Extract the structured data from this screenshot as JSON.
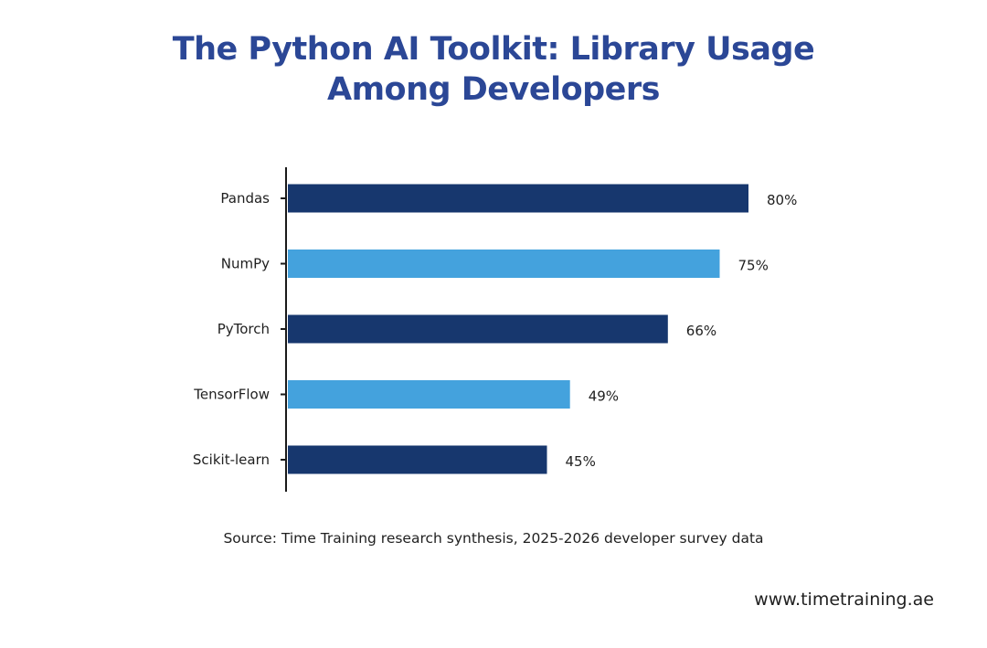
{
  "colors": {
    "title": "#2b4796",
    "dark_bar": "#17376e",
    "light_bar": "#44a2dd",
    "axis": "#1a1a1a"
  },
  "chart_data": {
    "type": "bar",
    "orientation": "horizontal",
    "title_lines": [
      "The Python AI Toolkit: Library Usage",
      "Among Developers"
    ],
    "categories": [
      "Pandas",
      "NumPy",
      "PyTorch",
      "TensorFlow",
      "Scikit-learn"
    ],
    "values": [
      80,
      75,
      66,
      49,
      45
    ],
    "value_labels": [
      "80%",
      "75%",
      "66%",
      "49%",
      "45%"
    ],
    "bar_colors": [
      "#17376e",
      "#44a2dd",
      "#17376e",
      "#44a2dd",
      "#17376e"
    ],
    "xlim": [
      0,
      100
    ],
    "grid": false,
    "legend": "none"
  },
  "footer": {
    "source": "Source: Time Training research synthesis, 2025-2026 developer survey data",
    "website": "www.timetraining.ae"
  }
}
